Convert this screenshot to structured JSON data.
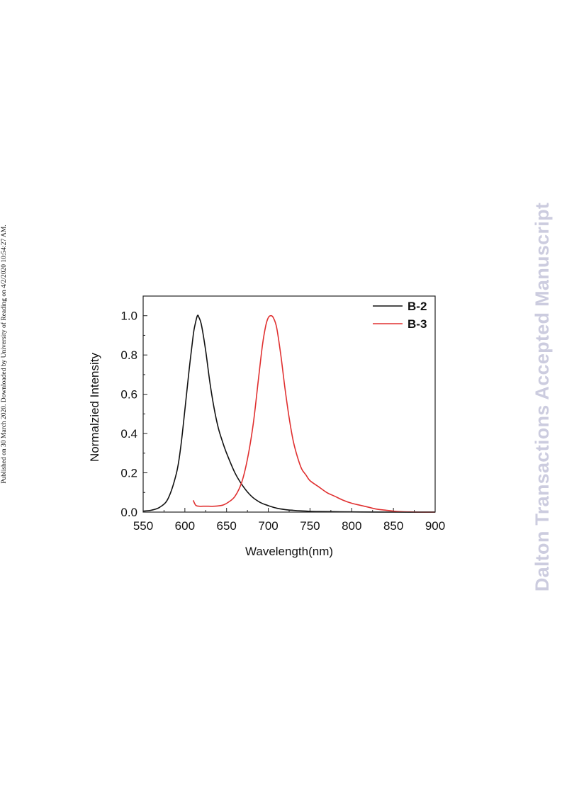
{
  "side_note": "Published on 30 March 2020. Downloaded by University of Reading on 4/2/2020 10:54:27 AM.",
  "watermark": "Dalton Transactions Accepted Manuscript",
  "chart_data": {
    "type": "line",
    "xlabel": "Wavelength(nm)",
    "ylabel": "Normalzied Intensity",
    "xlim": [
      550,
      900
    ],
    "ylim": [
      0,
      1.1
    ],
    "x_ticks": [
      "550",
      "600",
      "650",
      "700",
      "750",
      "800",
      "850",
      "900"
    ],
    "y_ticks": [
      "0.0",
      "0.2",
      "0.4",
      "0.6",
      "0.8",
      "1.0"
    ],
    "grid": false,
    "legend_position": "top-right",
    "series": [
      {
        "name": "B-2",
        "color": "#111111",
        "x": [
          550,
          560,
          570,
          580,
          590,
          595,
          600,
          605,
          610,
          612,
          615,
          617,
          620,
          625,
          630,
          635,
          640,
          645,
          650,
          660,
          670,
          680,
          690,
          700,
          710,
          720,
          730,
          740,
          750,
          760,
          780,
          800,
          850,
          900
        ],
        "y": [
          0.005,
          0.01,
          0.025,
          0.07,
          0.2,
          0.33,
          0.52,
          0.72,
          0.9,
          0.95,
          1.0,
          0.99,
          0.95,
          0.82,
          0.66,
          0.53,
          0.43,
          0.36,
          0.3,
          0.2,
          0.13,
          0.08,
          0.05,
          0.033,
          0.02,
          0.013,
          0.009,
          0.006,
          0.004,
          0.003,
          0.002,
          0.001,
          0.0,
          0.0
        ]
      },
      {
        "name": "B-3",
        "color": "#e03030",
        "x": [
          610,
          613,
          617,
          625,
          635,
          645,
          652,
          660,
          668,
          675,
          682,
          688,
          693,
          697,
          700,
          703,
          706,
          710,
          715,
          720,
          725,
          730,
          735,
          740,
          745,
          750,
          760,
          770,
          780,
          790,
          800,
          810,
          820,
          830,
          840,
          850,
          860,
          870,
          880,
          900
        ],
        "y": [
          0.06,
          0.035,
          0.03,
          0.03,
          0.03,
          0.035,
          0.05,
          0.08,
          0.15,
          0.27,
          0.45,
          0.67,
          0.85,
          0.95,
          0.99,
          1.0,
          0.99,
          0.94,
          0.8,
          0.63,
          0.48,
          0.36,
          0.28,
          0.22,
          0.19,
          0.16,
          0.13,
          0.1,
          0.08,
          0.06,
          0.045,
          0.035,
          0.025,
          0.015,
          0.01,
          0.005,
          0.002,
          0.001,
          0.0,
          0.0
        ]
      }
    ]
  }
}
